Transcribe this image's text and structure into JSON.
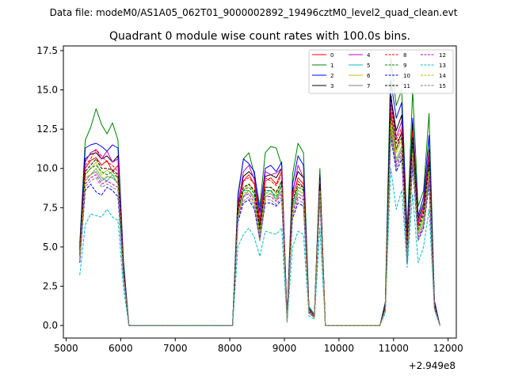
{
  "chart_data": {
    "type": "line",
    "suptitle": "Data file: modeM0/AS1A05_062T01_9000002892_19496cztM0_level2_quad_clean.evt",
    "title": "Quadrant 0 module wise count rates with 100.0s bins.",
    "xlabel": "",
    "ylabel": "",
    "x_offset_text": "+2.949e8",
    "xlim": [
      4950,
      12150
    ],
    "ylim": [
      -0.8,
      17.8
    ],
    "x_ticks": [
      5000,
      6000,
      7000,
      8000,
      9000,
      10000,
      11000,
      12000
    ],
    "x_tick_labels": [
      "5000",
      "6000",
      "7000",
      "8000",
      "9000",
      "10000",
      "11000",
      "12000"
    ],
    "y_ticks": [
      0,
      2.5,
      5,
      7.5,
      10,
      12.5,
      15,
      17.5
    ],
    "y_tick_labels": [
      "0.0",
      "2.5",
      "5.0",
      "7.5",
      "10.0",
      "12.5",
      "15.0",
      "17.5"
    ],
    "legend_location": "top-right",
    "x": [
      5250,
      5350,
      5450,
      5550,
      5650,
      5750,
      5850,
      5950,
      6050,
      6150,
      6250,
      6350,
      6450,
      6550,
      6650,
      6750,
      6850,
      6950,
      7050,
      7150,
      7250,
      7350,
      7450,
      7550,
      7650,
      7750,
      7850,
      7950,
      8050,
      8150,
      8250,
      8350,
      8450,
      8550,
      8650,
      8750,
      8850,
      8950,
      9050,
      9150,
      9250,
      9350,
      9450,
      9550,
      9650,
      9750,
      9850,
      9950,
      10050,
      10150,
      10250,
      10350,
      10450,
      10550,
      10650,
      10750,
      10850,
      10950,
      11050,
      11150,
      11250,
      11350,
      11450,
      11550,
      11650,
      11750,
      11850
    ],
    "series": [
      {
        "name": "0",
        "color": "#ff0000",
        "dash": false,
        "values": [
          4.8,
          10.0,
          10.5,
          10.7,
          10.2,
          10.5,
          9.8,
          10.2,
          3.6,
          0,
          0,
          0,
          0,
          0,
          0,
          0,
          0,
          0,
          0,
          0,
          0,
          0,
          0,
          0,
          0,
          0,
          0,
          0,
          0,
          7.5,
          9.2,
          9.6,
          9.0,
          6.4,
          9.2,
          9.4,
          9.0,
          9.8,
          0.4,
          8.2,
          9.4,
          9.0,
          1.0,
          0.6,
          9.0,
          0,
          0,
          0,
          0,
          0,
          0,
          0,
          0,
          0,
          0,
          0,
          1.2,
          13.6,
          11.2,
          12.4,
          5.0,
          13.0,
          6.4,
          7.4,
          10.0,
          1.3,
          0
        ]
      },
      {
        "name": "1",
        "color": "#008000",
        "dash": false,
        "values": [
          5.2,
          11.8,
          12.6,
          13.8,
          12.8,
          12.2,
          12.9,
          11.8,
          4.2,
          0,
          0,
          0,
          0,
          0,
          0,
          0,
          0,
          0,
          0,
          0,
          0,
          0,
          0,
          0,
          0,
          0,
          0,
          0,
          0,
          8.4,
          10.6,
          11.0,
          9.6,
          7.6,
          11.0,
          11.4,
          11.3,
          10.2,
          0.5,
          9.6,
          11.6,
          11.0,
          1.2,
          0.7,
          10.0,
          0,
          0,
          0,
          0,
          0,
          0,
          0,
          0,
          0,
          0,
          0,
          1.5,
          17.0,
          14.0,
          15.0,
          6.0,
          15.0,
          7.6,
          8.6,
          13.5,
          1.6,
          0
        ]
      },
      {
        "name": "2",
        "color": "#0000ff",
        "dash": false,
        "values": [
          5.0,
          11.3,
          11.5,
          11.6,
          11.4,
          11.1,
          11.5,
          11.3,
          4.0,
          0,
          0,
          0,
          0,
          0,
          0,
          0,
          0,
          0,
          0,
          0,
          0,
          0,
          0,
          0,
          0,
          0,
          0,
          0,
          0,
          8.2,
          10.6,
          10.3,
          9.8,
          7.2,
          10.0,
          10.2,
          9.8,
          10.4,
          0.5,
          9.0,
          10.8,
          10.2,
          1.1,
          0.6,
          9.6,
          0,
          0,
          0,
          0,
          0,
          0,
          0,
          0,
          0,
          0,
          0,
          1.4,
          15.6,
          13.2,
          14.2,
          5.6,
          13.2,
          7.0,
          8.2,
          12.1,
          1.5,
          0
        ]
      },
      {
        "name": "3",
        "color": "#000000",
        "dash": false,
        "values": [
          4.9,
          10.6,
          10.9,
          11.0,
          10.6,
          10.8,
          10.4,
          10.8,
          3.8,
          0,
          0,
          0,
          0,
          0,
          0,
          0,
          0,
          0,
          0,
          0,
          0,
          0,
          0,
          0,
          0,
          0,
          0,
          0,
          0,
          7.8,
          9.5,
          9.8,
          9.4,
          6.7,
          9.5,
          9.6,
          9.4,
          10.0,
          0.4,
          8.6,
          9.8,
          9.4,
          1.0,
          0.6,
          9.4,
          0,
          0,
          0,
          0,
          0,
          0,
          0,
          0,
          0,
          0,
          0,
          1.3,
          14.6,
          12.4,
          13.4,
          5.2,
          12.8,
          6.8,
          7.8,
          11.2,
          1.4,
          0
        ]
      },
      {
        "name": "4",
        "color": "#bf00bf",
        "dash": false,
        "values": [
          4.6,
          10.4,
          11.0,
          11.2,
          10.6,
          11.1,
          10.4,
          10.6,
          3.7,
          0,
          0,
          0,
          0,
          0,
          0,
          0,
          0,
          0,
          0,
          0,
          0,
          0,
          0,
          0,
          0,
          0,
          0,
          0,
          0,
          7.6,
          9.8,
          10.2,
          9.3,
          6.6,
          9.8,
          9.6,
          9.7,
          10.0,
          0.4,
          8.4,
          10.2,
          9.4,
          1.0,
          0.6,
          9.2,
          0,
          0,
          0,
          0,
          0,
          0,
          0,
          0,
          0,
          0,
          0,
          1.2,
          14.2,
          12.0,
          13.0,
          5.0,
          12.4,
          6.6,
          7.6,
          11.0,
          1.3,
          0
        ]
      },
      {
        "name": "5",
        "color": "#00bfbf",
        "dash": false,
        "values": [
          4.4,
          9.4,
          9.6,
          10.0,
          9.4,
          9.2,
          9.6,
          9.0,
          3.4,
          0,
          0,
          0,
          0,
          0,
          0,
          0,
          0,
          0,
          0,
          0,
          0,
          0,
          0,
          0,
          0,
          0,
          0,
          0,
          0,
          7.2,
          8.6,
          8.6,
          8.2,
          5.6,
          8.4,
          8.6,
          8.0,
          9.0,
          0.3,
          7.6,
          8.6,
          8.4,
          0.9,
          0.5,
          8.8,
          0,
          0,
          0,
          0,
          0,
          0,
          0,
          0,
          0,
          0,
          0,
          1.1,
          12.8,
          10.6,
          11.4,
          4.4,
          11.0,
          5.8,
          6.6,
          9.8,
          1.2,
          0
        ]
      },
      {
        "name": "6",
        "color": "#bfbf00",
        "dash": false,
        "values": [
          4.5,
          9.6,
          10.0,
          10.4,
          9.6,
          9.9,
          9.6,
          9.4,
          3.5,
          0,
          0,
          0,
          0,
          0,
          0,
          0,
          0,
          0,
          0,
          0,
          0,
          0,
          0,
          0,
          0,
          0,
          0,
          0,
          0,
          7.2,
          8.6,
          9.0,
          8.4,
          6.0,
          8.8,
          8.8,
          8.4,
          9.2,
          0.3,
          7.8,
          9.0,
          8.6,
          0.9,
          0.5,
          8.8,
          0,
          0,
          0,
          0,
          0,
          0,
          0,
          0,
          0,
          0,
          0,
          1.1,
          13.0,
          11.0,
          11.8,
          4.6,
          11.4,
          6.0,
          6.8,
          10.2,
          1.2,
          0
        ]
      },
      {
        "name": "7",
        "color": "#808080",
        "dash": false,
        "values": [
          4.3,
          9.2,
          9.6,
          9.8,
          9.2,
          9.5,
          9.4,
          9.1,
          3.3,
          0,
          0,
          0,
          0,
          0,
          0,
          0,
          0,
          0,
          0,
          0,
          0,
          0,
          0,
          0,
          0,
          0,
          0,
          0,
          0,
          7.0,
          8.2,
          8.6,
          8.0,
          5.8,
          8.2,
          8.4,
          8.0,
          8.6,
          0.3,
          7.4,
          8.4,
          8.2,
          0.9,
          0.5,
          8.4,
          0,
          0,
          0,
          0,
          0,
          0,
          0,
          0,
          0,
          0,
          0,
          1.0,
          12.6,
          10.4,
          11.2,
          4.4,
          11.0,
          5.8,
          6.6,
          9.6,
          1.2,
          0
        ]
      },
      {
        "name": "8",
        "color": "#ff0000",
        "dash": true,
        "values": [
          4.6,
          10.2,
          10.6,
          11.2,
          10.8,
          10.4,
          10.2,
          9.8,
          3.6,
          0,
          0,
          0,
          0,
          0,
          0,
          0,
          0,
          0,
          0,
          0,
          0,
          0,
          0,
          0,
          0,
          0,
          0,
          0,
          0,
          7.6,
          9.2,
          9.4,
          9.0,
          6.6,
          9.4,
          9.2,
          8.9,
          9.6,
          0.4,
          8.4,
          9.2,
          8.8,
          1.0,
          0.6,
          9.0,
          0,
          0,
          0,
          0,
          0,
          0,
          0,
          0,
          0,
          0,
          0,
          1.2,
          13.8,
          11.8,
          12.6,
          5.0,
          12.4,
          6.4,
          7.4,
          10.6,
          1.3,
          0
        ]
      },
      {
        "name": "9",
        "color": "#008000",
        "dash": true,
        "values": [
          4.4,
          9.6,
          10.0,
          10.2,
          9.8,
          9.6,
          9.8,
          9.4,
          3.4,
          0,
          0,
          0,
          0,
          0,
          0,
          0,
          0,
          0,
          0,
          0,
          0,
          0,
          0,
          0,
          0,
          0,
          0,
          0,
          0,
          7.2,
          8.6,
          8.8,
          8.4,
          6.0,
          8.6,
          8.6,
          8.2,
          9.0,
          0.3,
          7.8,
          8.8,
          8.6,
          0.9,
          0.5,
          8.8,
          0,
          0,
          0,
          0,
          0,
          0,
          0,
          0,
          0,
          0,
          0,
          1.1,
          13.2,
          11.2,
          12.0,
          4.6,
          11.6,
          6.0,
          7.0,
          10.0,
          1.2,
          0
        ]
      },
      {
        "name": "10",
        "color": "#0000ff",
        "dash": true,
        "values": [
          4.0,
          8.6,
          9.0,
          8.5,
          8.3,
          8.8,
          8.6,
          8.2,
          3.1,
          0,
          0,
          0,
          0,
          0,
          0,
          0,
          0,
          0,
          0,
          0,
          0,
          0,
          0,
          0,
          0,
          0,
          0,
          0,
          0,
          6.6,
          7.8,
          8.0,
          7.4,
          5.4,
          7.8,
          7.8,
          7.6,
          8.0,
          0.3,
          6.8,
          7.8,
          7.6,
          0.8,
          0.5,
          8.0,
          0,
          0,
          0,
          0,
          0,
          0,
          0,
          0,
          0,
          0,
          0,
          1.0,
          12.0,
          9.8,
          10.6,
          4.0,
          10.2,
          5.4,
          6.2,
          9.0,
          1.1,
          0
        ]
      },
      {
        "name": "11",
        "color": "#000000",
        "dash": true,
        "values": [
          4.5,
          9.8,
          10.2,
          10.6,
          10.0,
          10.0,
          9.9,
          9.6,
          3.5,
          0,
          0,
          0,
          0,
          0,
          0,
          0,
          0,
          0,
          0,
          0,
          0,
          0,
          0,
          0,
          0,
          0,
          0,
          0,
          0,
          7.4,
          8.8,
          9.0,
          8.6,
          6.2,
          8.8,
          8.8,
          8.5,
          9.2,
          0.3,
          8.0,
          9.0,
          8.8,
          0.9,
          0.5,
          9.0,
          0,
          0,
          0,
          0,
          0,
          0,
          0,
          0,
          0,
          0,
          0,
          1.1,
          14.8,
          11.6,
          12.2,
          4.8,
          12.0,
          6.2,
          7.2,
          10.4,
          1.3,
          0
        ]
      },
      {
        "name": "12",
        "color": "#bf00bf",
        "dash": true,
        "values": [
          4.2,
          9.0,
          9.4,
          9.6,
          9.0,
          9.2,
          9.0,
          8.8,
          3.2,
          0,
          0,
          0,
          0,
          0,
          0,
          0,
          0,
          0,
          0,
          0,
          0,
          0,
          0,
          0,
          0,
          0,
          0,
          0,
          0,
          6.8,
          8.2,
          8.4,
          7.8,
          5.6,
          8.2,
          8.2,
          7.9,
          8.4,
          0.3,
          7.2,
          8.2,
          8.0,
          0.8,
          0.5,
          8.4,
          0,
          0,
          0,
          0,
          0,
          0,
          0,
          0,
          0,
          0,
          0,
          1.0,
          12.4,
          10.2,
          11.0,
          4.2,
          10.8,
          5.6,
          6.4,
          9.4,
          1.1,
          0
        ]
      },
      {
        "name": "13",
        "color": "#00bfbf",
        "dash": true,
        "values": [
          3.2,
          6.4,
          7.1,
          7.0,
          6.9,
          7.4,
          6.9,
          6.7,
          2.4,
          0,
          0,
          0,
          0,
          0,
          0,
          0,
          0,
          0,
          0,
          0,
          0,
          0,
          0,
          0,
          0,
          0,
          0,
          0,
          0,
          5.0,
          5.8,
          6.2,
          5.6,
          4.4,
          6.0,
          5.9,
          5.8,
          6.2,
          0.2,
          5.0,
          6.0,
          5.8,
          0.6,
          0.4,
          6.2,
          0,
          0,
          0,
          0,
          0,
          0,
          0,
          0,
          0,
          0,
          0,
          0.8,
          10.0,
          7.4,
          8.6,
          3.7,
          8.4,
          4.0,
          5.0,
          7.4,
          1.0,
          0
        ]
      },
      {
        "name": "14",
        "color": "#bfbf00",
        "dash": true,
        "values": [
          4.3,
          9.4,
          9.6,
          10.0,
          9.4,
          9.4,
          9.4,
          9.0,
          3.3,
          0,
          0,
          0,
          0,
          0,
          0,
          0,
          0,
          0,
          0,
          0,
          0,
          0,
          0,
          0,
          0,
          0,
          0,
          0,
          0,
          7.0,
          8.4,
          8.6,
          8.0,
          5.8,
          8.4,
          8.4,
          8.0,
          8.8,
          0.3,
          7.4,
          8.6,
          8.4,
          0.9,
          0.5,
          8.6,
          0,
          0,
          0,
          0,
          0,
          0,
          0,
          0,
          0,
          0,
          0,
          1.0,
          12.8,
          10.6,
          11.4,
          4.4,
          11.0,
          5.8,
          6.6,
          9.8,
          1.2,
          0
        ]
      },
      {
        "name": "15",
        "color": "#808080",
        "dash": true,
        "values": [
          4.1,
          8.8,
          9.2,
          9.4,
          8.8,
          9.0,
          8.8,
          8.6,
          3.2,
          0,
          0,
          0,
          0,
          0,
          0,
          0,
          0,
          0,
          0,
          0,
          0,
          0,
          0,
          0,
          0,
          0,
          0,
          0,
          0,
          6.8,
          7.9,
          8.2,
          7.6,
          5.4,
          8.0,
          8.0,
          7.7,
          8.2,
          0.3,
          7.0,
          8.0,
          7.8,
          0.8,
          0.5,
          8.2,
          0,
          0,
          0,
          0,
          0,
          0,
          0,
          0,
          0,
          0,
          0,
          1.0,
          12.2,
          10.0,
          10.8,
          4.2,
          10.6,
          5.4,
          6.4,
          9.2,
          1.1,
          0
        ]
      }
    ]
  }
}
